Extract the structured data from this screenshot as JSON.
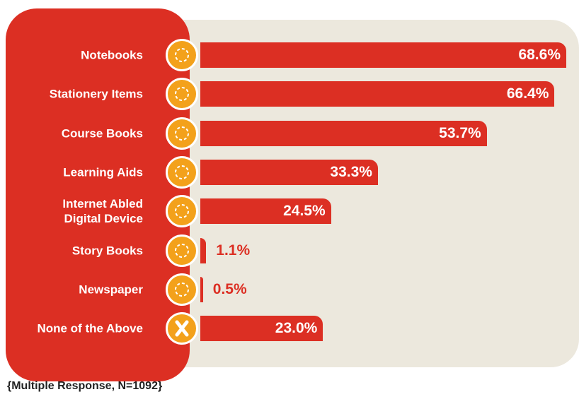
{
  "chart_data": {
    "type": "bar",
    "categories": [
      "Notebooks",
      "Stationery Items",
      "Course Books",
      "Learning Aids",
      "Internet Abled\nDigital Device",
      "Story Books",
      "Newspaper",
      "None of the Above"
    ],
    "values": [
      68.6,
      66.4,
      53.7,
      33.3,
      24.5,
      1.1,
      0.5,
      23.0
    ],
    "value_labels": [
      "68.6%",
      "66.4%",
      "53.7%",
      "33.3%",
      "24.5%",
      "1.1%",
      "0.5%",
      "23.0%"
    ],
    "color": "#dc2f23",
    "note": "{Multiple Response, N=1092}"
  }
}
